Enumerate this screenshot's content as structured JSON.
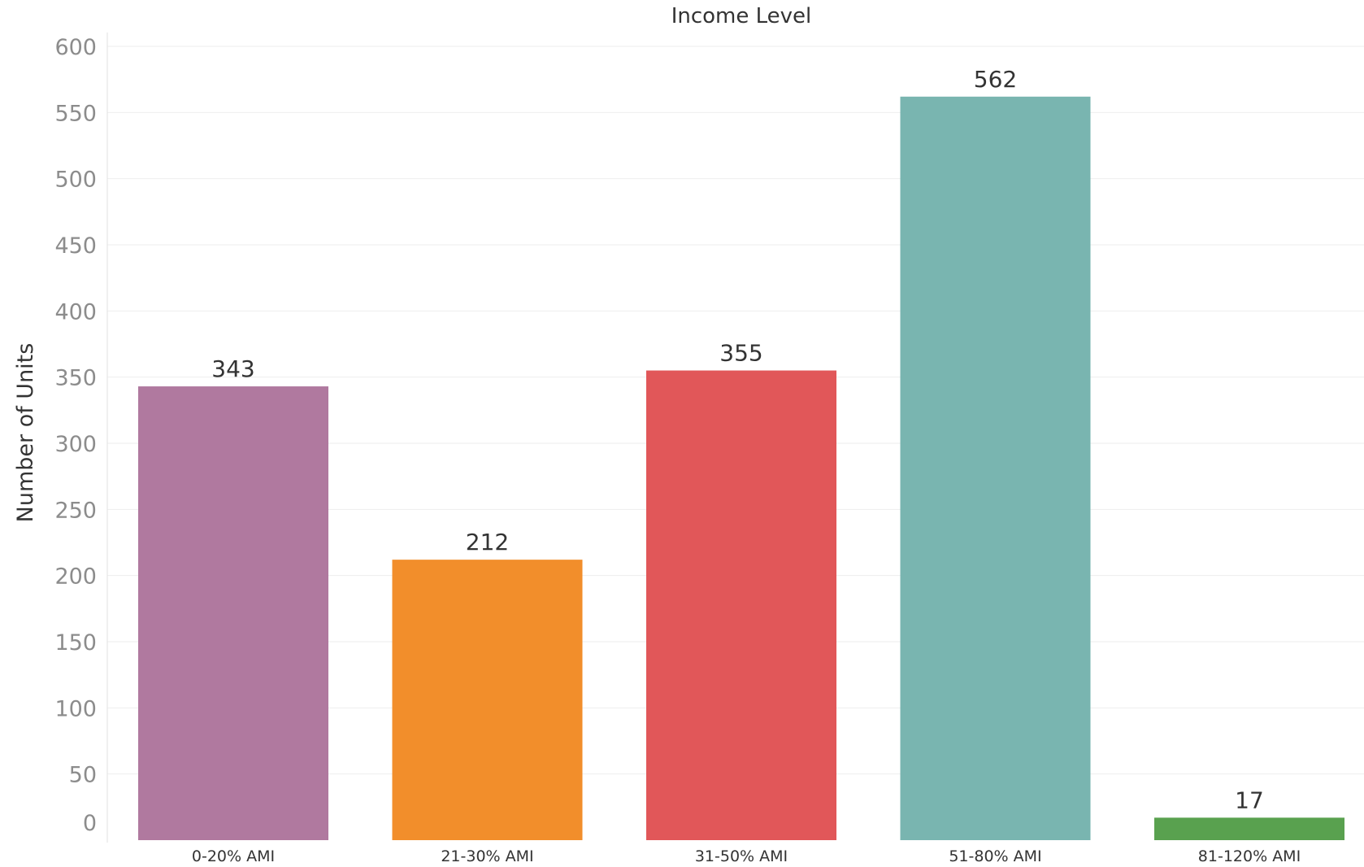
{
  "chart_data": {
    "type": "bar",
    "title": "Income Level",
    "xlabel": "",
    "ylabel": "Number of Units",
    "ylim": [
      0,
      600
    ],
    "yticks": [
      0,
      50,
      100,
      150,
      200,
      250,
      300,
      350,
      400,
      450,
      500,
      550,
      600
    ],
    "grid": true,
    "categories": [
      "0-20% AMI",
      "21-30% AMI",
      "31-50% AMI",
      "51-80% AMI",
      "81-120% AMI"
    ],
    "values": [
      343,
      212,
      355,
      562,
      17
    ],
    "data_labels": [
      "343",
      "212",
      "355",
      "562",
      "17"
    ],
    "colors": [
      "#b0799f",
      "#f28e2b",
      "#e15759",
      "#79b5b0",
      "#59a14f"
    ]
  }
}
